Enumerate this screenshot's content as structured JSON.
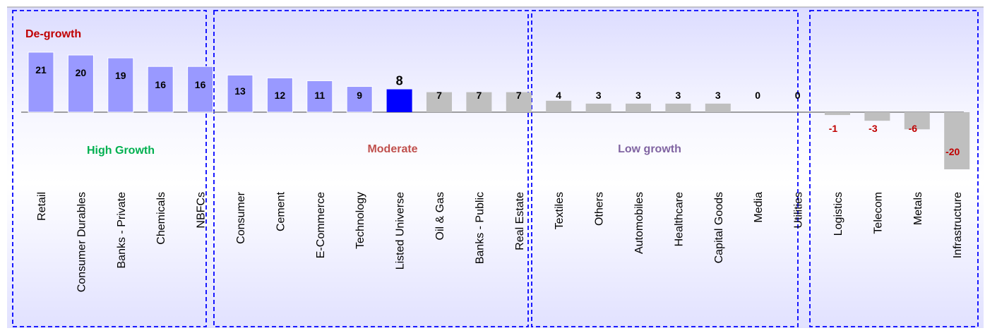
{
  "chart_data": {
    "type": "bar",
    "categories": [
      "Retail",
      "Consumer Durables",
      "Banks - Private",
      "Chemicals",
      "NBFCs",
      "Consumer",
      "Cement",
      "E-Commerce",
      "Technology",
      "Listed Universe",
      "Oil & Gas",
      "Banks - Public",
      "Real Estate",
      "Textiles",
      "Others",
      "Automobiles",
      "Healthcare",
      "Capital Goods",
      "Media",
      "Utilities",
      "Logistics",
      "Telecom",
      "Metals",
      "Infrastructure"
    ],
    "values": [
      21,
      20,
      19,
      16,
      16,
      13,
      12,
      11,
      9,
      8,
      7,
      7,
      7,
      4,
      3,
      3,
      3,
      3,
      0,
      0,
      -1,
      -3,
      -6,
      -20
    ],
    "value_labels": [
      "21",
      "20",
      "19",
      "16",
      "16",
      "13",
      "12",
      "11",
      "9",
      "8",
      "7",
      "7",
      "7",
      "4",
      "3",
      "3",
      "3",
      "3",
      "0",
      "0",
      "-1",
      "-3",
      "-6",
      "-20"
    ],
    "bar_groups": [
      "high",
      "high",
      "high",
      "high",
      "high",
      "high",
      "high",
      "high",
      "high",
      "highlight",
      "neutral",
      "neutral",
      "neutral",
      "neutral",
      "neutral",
      "neutral",
      "neutral",
      "neutral",
      "neutral",
      "neutral",
      "neutral",
      "neutral",
      "neutral",
      "neutral"
    ],
    "ylim": [
      -22,
      24
    ],
    "title": "",
    "xlabel": "",
    "ylabel": "",
    "grid": false,
    "segments": [
      {
        "label": "High Growth",
        "color": "#00b050",
        "first": 0,
        "last": 4
      },
      {
        "label": "Moderate",
        "color": "#c0504d",
        "first": 5,
        "last": 12
      },
      {
        "label": "Low growth",
        "color": "#8064a2",
        "first": 13,
        "last": 19
      },
      {
        "label": "De-growth",
        "color": "#c00000",
        "first": 20,
        "last": 23
      }
    ],
    "colors": {
      "high": "#9999ff",
      "highlight": "#0000ff",
      "neutral": "#bfbfbf",
      "negative_label": "#c00000",
      "value_label": "#000000",
      "box_border": "#0000ff",
      "axis": "#808080"
    }
  }
}
